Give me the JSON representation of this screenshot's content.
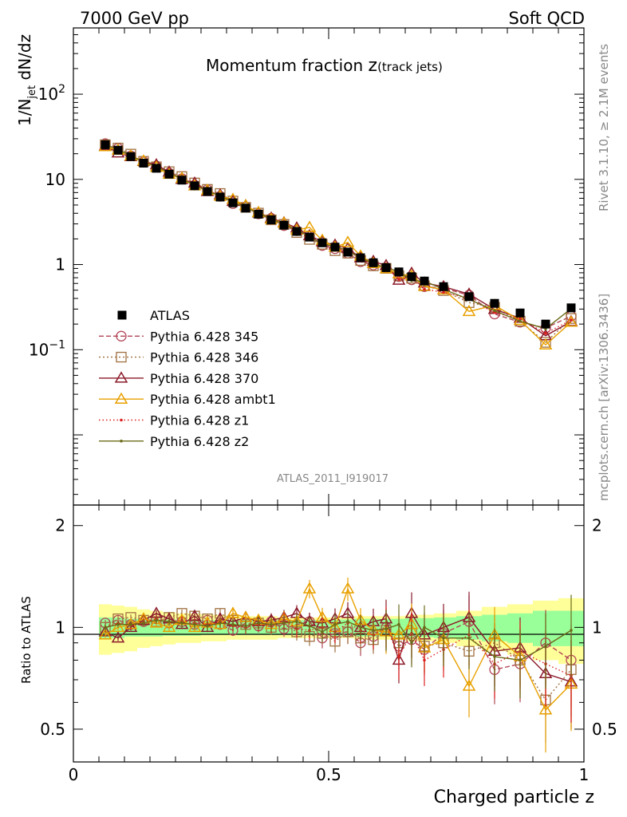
{
  "header": {
    "left": "7000 GeV pp",
    "right": "Soft QCD"
  },
  "side_labels": {
    "rivet": "Rivet 3.1.10, ≥ 2.1M events",
    "mcplots": "mcplots.cern.ch [arXiv:1306.3436]"
  },
  "chart_data": {
    "type": "line",
    "title_main": "Momentum fraction ",
    "title_z": "z",
    "title_sub": "(track jets)",
    "analysis_label": "ATLAS_2011_I919017",
    "xlabel": "Charged particle z",
    "ylabel_main_pre": "1/N",
    "ylabel_main_sub": "jet",
    "ylabel_main_post": " dN/dz",
    "ylabel_ratio": "Ratio to ATLAS",
    "xlim": [
      0,
      1
    ],
    "ylim_main": [
      0.0015,
      600
    ],
    "ylim_ratio": [
      0.4,
      2.3
    ],
    "yscale_main": "log",
    "yscale_ratio": "log",
    "x_ticks": [
      {
        "v": 0,
        "label": "0"
      },
      {
        "v": 0.5,
        "label": "0.5"
      },
      {
        "v": 1,
        "label": "1"
      }
    ],
    "y_ticks_main": [
      {
        "v": 0.1,
        "base": "10",
        "exp": "−1"
      },
      {
        "v": 1,
        "base": "1",
        "exp": ""
      },
      {
        "v": 10,
        "base": "10",
        "exp": ""
      },
      {
        "v": 100,
        "base": "10",
        "exp": "2"
      }
    ],
    "y_ticks_ratio": [
      {
        "v": 0.5,
        "label": "0.5"
      },
      {
        "v": 1,
        "label": "1"
      },
      {
        "v": 2,
        "label": "2"
      }
    ],
    "x": [
      0.0625,
      0.0875,
      0.1125,
      0.1375,
      0.1625,
      0.1875,
      0.2125,
      0.2375,
      0.2625,
      0.2875,
      0.3125,
      0.3375,
      0.3625,
      0.3875,
      0.4125,
      0.4375,
      0.4625,
      0.4875,
      0.5125,
      0.5375,
      0.5625,
      0.5875,
      0.6125,
      0.6375,
      0.6625,
      0.6875,
      0.725,
      0.775,
      0.825,
      0.875,
      0.925,
      0.975
    ],
    "atlas": [
      25.5,
      22.0,
      18.5,
      15.5,
      13.5,
      11.5,
      9.8,
      8.4,
      7.2,
      6.2,
      5.3,
      4.6,
      3.9,
      3.35,
      2.9,
      2.45,
      2.1,
      1.8,
      1.6,
      1.4,
      1.2,
      1.05,
      0.92,
      0.82,
      0.72,
      0.64,
      0.55,
      0.42,
      0.35,
      0.27,
      0.2,
      0.31
    ],
    "band_inner": [
      0.07,
      0.07,
      0.06,
      0.06,
      0.06,
      0.055,
      0.055,
      0.055,
      0.05,
      0.05,
      0.05,
      0.05,
      0.05,
      0.05,
      0.05,
      0.05,
      0.05,
      0.05,
      0.055,
      0.055,
      0.06,
      0.06,
      0.06,
      0.06,
      0.065,
      0.065,
      0.07,
      0.08,
      0.09,
      0.1,
      0.12,
      0.12
    ],
    "band_outer": [
      0.17,
      0.16,
      0.15,
      0.13,
      0.12,
      0.11,
      0.1,
      0.1,
      0.09,
      0.09,
      0.08,
      0.08,
      0.08,
      0.08,
      0.07,
      0.07,
      0.07,
      0.07,
      0.07,
      0.07,
      0.08,
      0.08,
      0.08,
      0.08,
      0.09,
      0.09,
      0.1,
      0.12,
      0.15,
      0.17,
      0.2,
      0.22
    ],
    "legend": [
      {
        "key": "atlas",
        "label": "ATLAS"
      },
      {
        "key": "p345",
        "label": "Pythia 6.428 345"
      },
      {
        "key": "p346",
        "label": "Pythia 6.428 346"
      },
      {
        "key": "p370",
        "label": "Pythia 6.428 370"
      },
      {
        "key": "ambt1",
        "label": "Pythia 6.428 ambt1"
      },
      {
        "key": "z1",
        "label": "Pythia 6.428 z1"
      },
      {
        "key": "z2",
        "label": "Pythia 6.428 z2"
      }
    ],
    "series": [
      {
        "key": "p345",
        "name": "Pythia 6.428 345",
        "color": "#b24455",
        "dash": "6,3",
        "marker": "circle",
        "ratio": [
          1.03,
          1.05,
          1.02,
          1.04,
          1.06,
          1.03,
          1.04,
          1.02,
          1.05,
          1.02,
          0.98,
          1.03,
          1.01,
          1.04,
          0.99,
          1.02,
          1.04,
          0.93,
          0.96,
          0.97,
          0.9,
          0.94,
          1.0,
          0.88,
          0.92,
          0.86,
          0.96,
          1.04,
          0.75,
          0.78,
          0.9,
          0.8
        ]
      },
      {
        "key": "p346",
        "name": "Pythia 6.428 346",
        "color": "#a07040",
        "dash": "2,3",
        "marker": "square",
        "ratio": [
          1.0,
          1.06,
          1.07,
          1.05,
          1.04,
          1.07,
          1.1,
          1.08,
          1.06,
          1.1,
          1.05,
          1.02,
          1.03,
          1.0,
          1.02,
          0.97,
          0.94,
          0.96,
          0.91,
          0.97,
          0.93,
          0.92,
          0.98,
          0.9,
          0.96,
          0.88,
          0.9,
          0.85,
          0.9,
          0.8,
          0.61,
          0.75
        ]
      },
      {
        "key": "p370",
        "name": "Pythia 6.428 370",
        "color": "#8b1a2a",
        "dash": "",
        "marker": "tri",
        "ratio": [
          0.97,
          0.93,
          1.0,
          1.05,
          1.1,
          1.06,
          1.02,
          1.08,
          1.0,
          1.06,
          1.04,
          1.07,
          1.04,
          1.05,
          1.07,
          1.1,
          1.04,
          1.03,
          1.06,
          1.1,
          1.0,
          1.04,
          1.06,
          0.8,
          1.1,
          0.95,
          1.0,
          1.07,
          0.85,
          0.87,
          0.73,
          0.69
        ]
      },
      {
        "key": "ambt1",
        "name": "Pythia 6.428 ambt1",
        "color": "#e8a000",
        "dash": "",
        "marker": "tri",
        "ratio": [
          0.95,
          1.0,
          1.02,
          1.06,
          1.03,
          1.0,
          1.05,
          1.0,
          1.03,
          1.02,
          1.1,
          1.07,
          1.05,
          1.02,
          1.06,
          1.04,
          1.3,
          1.07,
          1.0,
          1.3,
          1.05,
          0.98,
          0.97,
          0.95,
          1.02,
          0.87,
          0.92,
          0.67,
          0.95,
          0.82,
          0.57,
          0.68
        ]
      },
      {
        "key": "z1",
        "name": "Pythia 6.428 z1",
        "color": "#dd2222",
        "dash": "1.5,3",
        "marker": "dot",
        "ratio": [
          1.0,
          1.03,
          1.01,
          1.04,
          1.06,
          1.04,
          1.05,
          1.03,
          1.02,
          1.04,
          1.01,
          1.0,
          1.02,
          1.01,
          1.05,
          0.99,
          0.98,
          1.0,
          0.97,
          1.03,
          0.98,
          0.95,
          1.01,
          0.82,
          0.96,
          0.8,
          0.86,
          0.95,
          0.78,
          0.85,
          0.78,
          0.72
        ]
      },
      {
        "key": "z2",
        "name": "Pythia 6.428 z2",
        "color": "#6b6b1a",
        "dash": "",
        "marker": "dot",
        "ratio": [
          1.0,
          1.02,
          1.02,
          1.03,
          1.05,
          1.04,
          1.03,
          1.02,
          1.01,
          1.03,
          1.02,
          1.01,
          1.03,
          1.02,
          1.03,
          1.04,
          1.01,
          0.97,
          1.02,
          1.04,
          1.0,
          0.98,
          0.99,
          1.02,
          0.9,
          1.0,
          0.93,
          0.93,
          0.82,
          0.8,
          0.88,
          0.98
        ]
      }
    ]
  }
}
